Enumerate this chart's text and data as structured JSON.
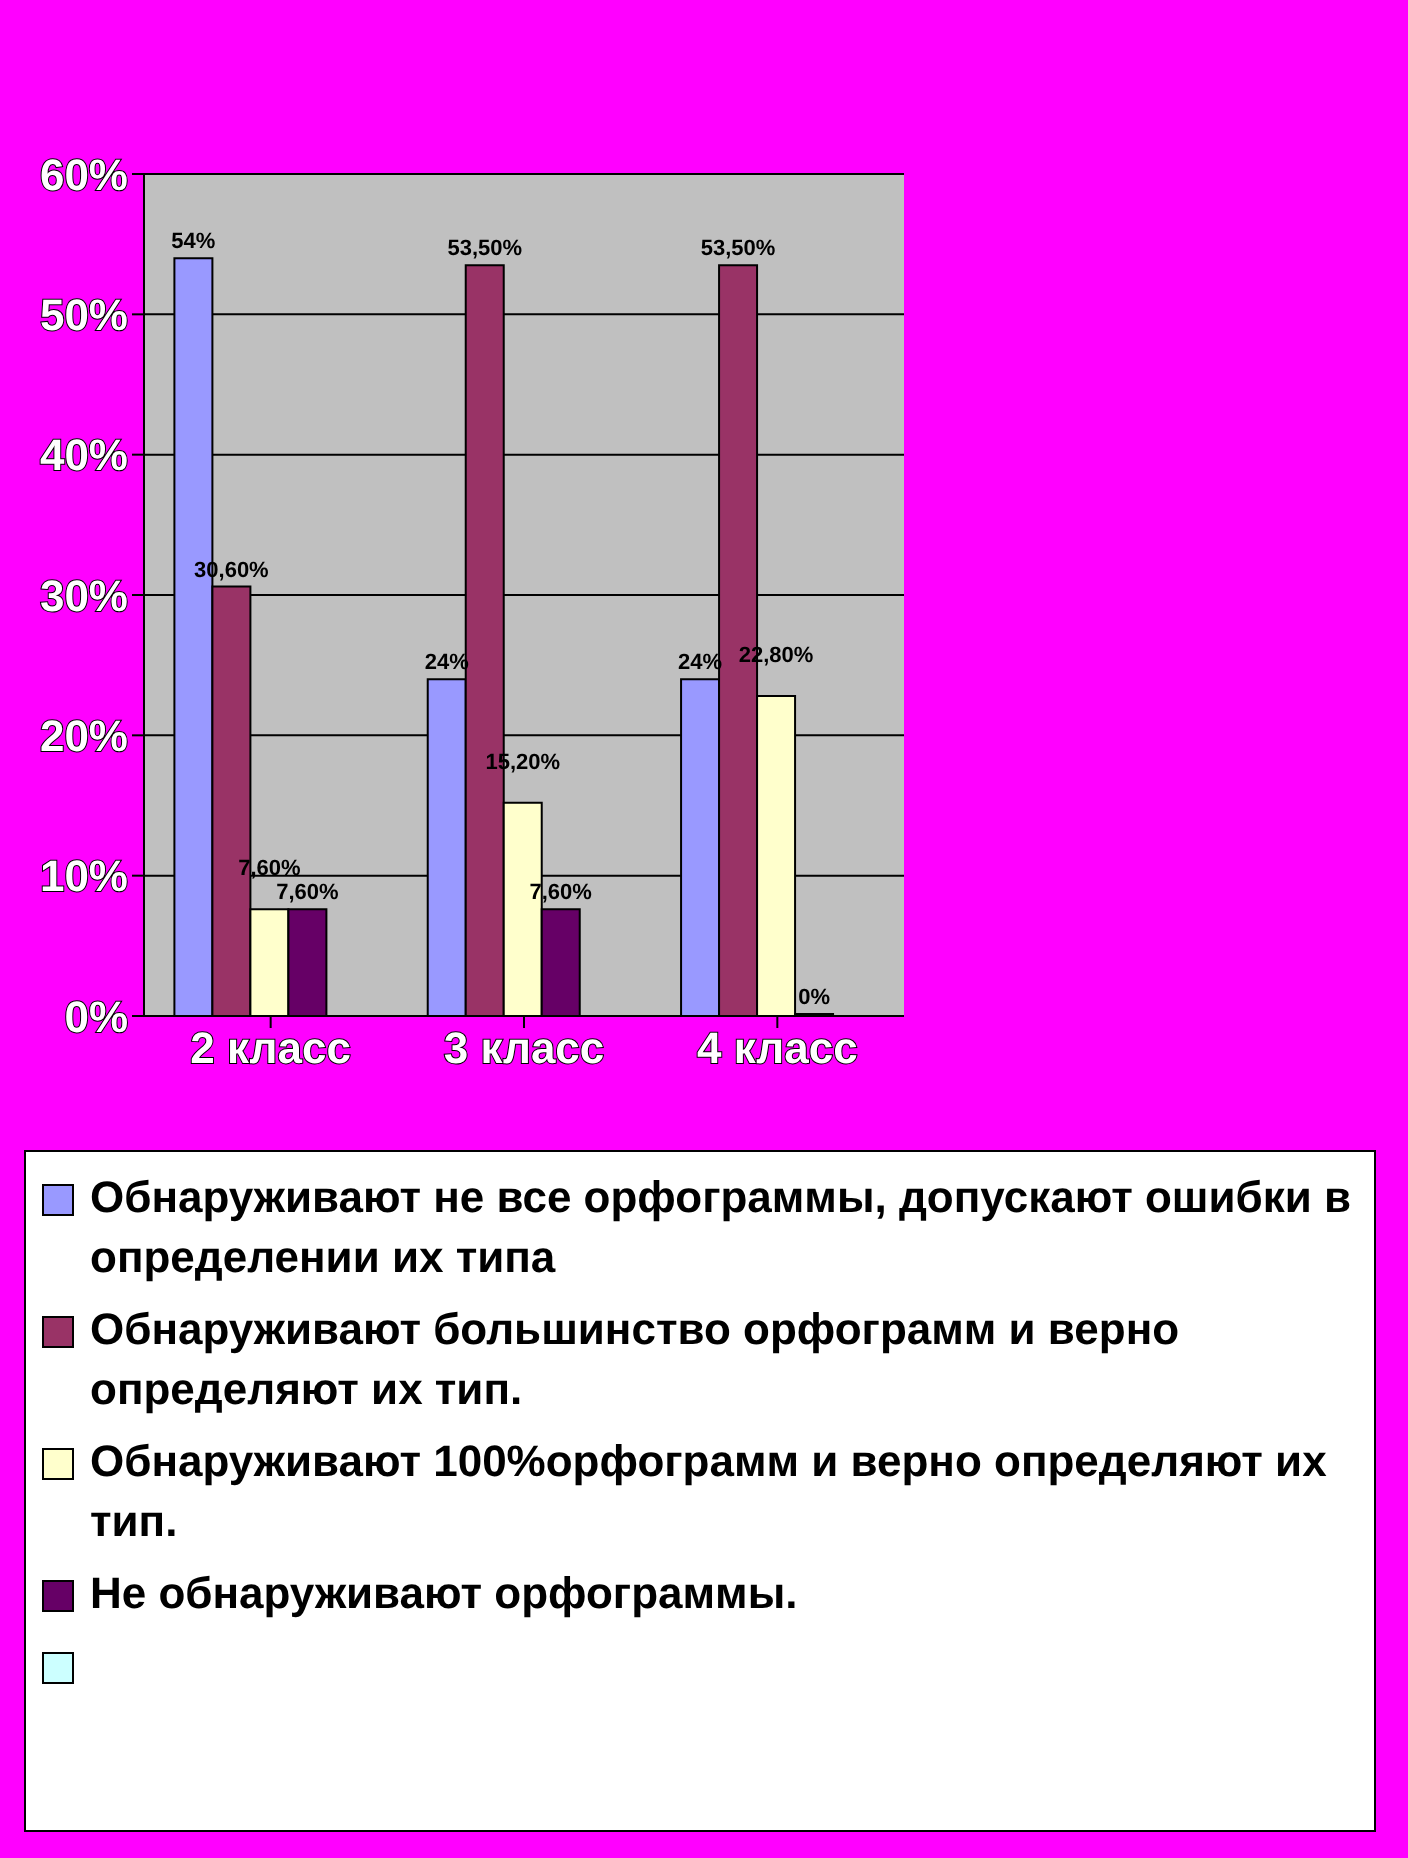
{
  "chart_data": {
    "type": "bar",
    "categories": [
      "2 класс",
      "3 класс",
      "4 класс"
    ],
    "series": [
      {
        "name": "Обнаруживают не все орфограммы, допускают ошибки в определении их типа",
        "color": "#9999ff",
        "values": [
          54,
          24,
          24
        ],
        "value_labels": [
          "54%",
          "24%",
          "24%"
        ]
      },
      {
        "name": "Обнаруживают большинство орфограмм и верно определяют их тип.",
        "color": "#993366",
        "values": [
          30.6,
          53.5,
          53.5
        ],
        "value_labels": [
          "30,60%",
          "53,50%",
          "53,50%"
        ]
      },
      {
        "name": "Обнаруживают 100%орфограмм и верно определяют их тип.",
        "color": "#ffffcc",
        "values": [
          7.6,
          15.2,
          22.8
        ],
        "value_labels": [
          "7,60%",
          "15,20%",
          "22,80%"
        ]
      },
      {
        "name": "Не обнаруживают орфограммы.",
        "color": "#660066",
        "values": [
          7.6,
          7.6,
          0
        ],
        "value_labels": [
          "7,60%",
          "7,60%",
          "0%"
        ]
      },
      {
        "color": "#ccffff",
        "values": [
          null,
          null,
          null
        ]
      }
    ],
    "ylim": [
      0,
      60
    ],
    "yticks": [
      {
        "value": 0,
        "label": "0%"
      },
      {
        "value": 10,
        "label": "10%"
      },
      {
        "value": 20,
        "label": "20%"
      },
      {
        "value": 30,
        "label": "30%"
      },
      {
        "value": 40,
        "label": "40%"
      },
      {
        "value": 50,
        "label": "50%"
      },
      {
        "value": 60,
        "label": "60%"
      }
    ],
    "grid": "y",
    "legend": "bottom"
  }
}
